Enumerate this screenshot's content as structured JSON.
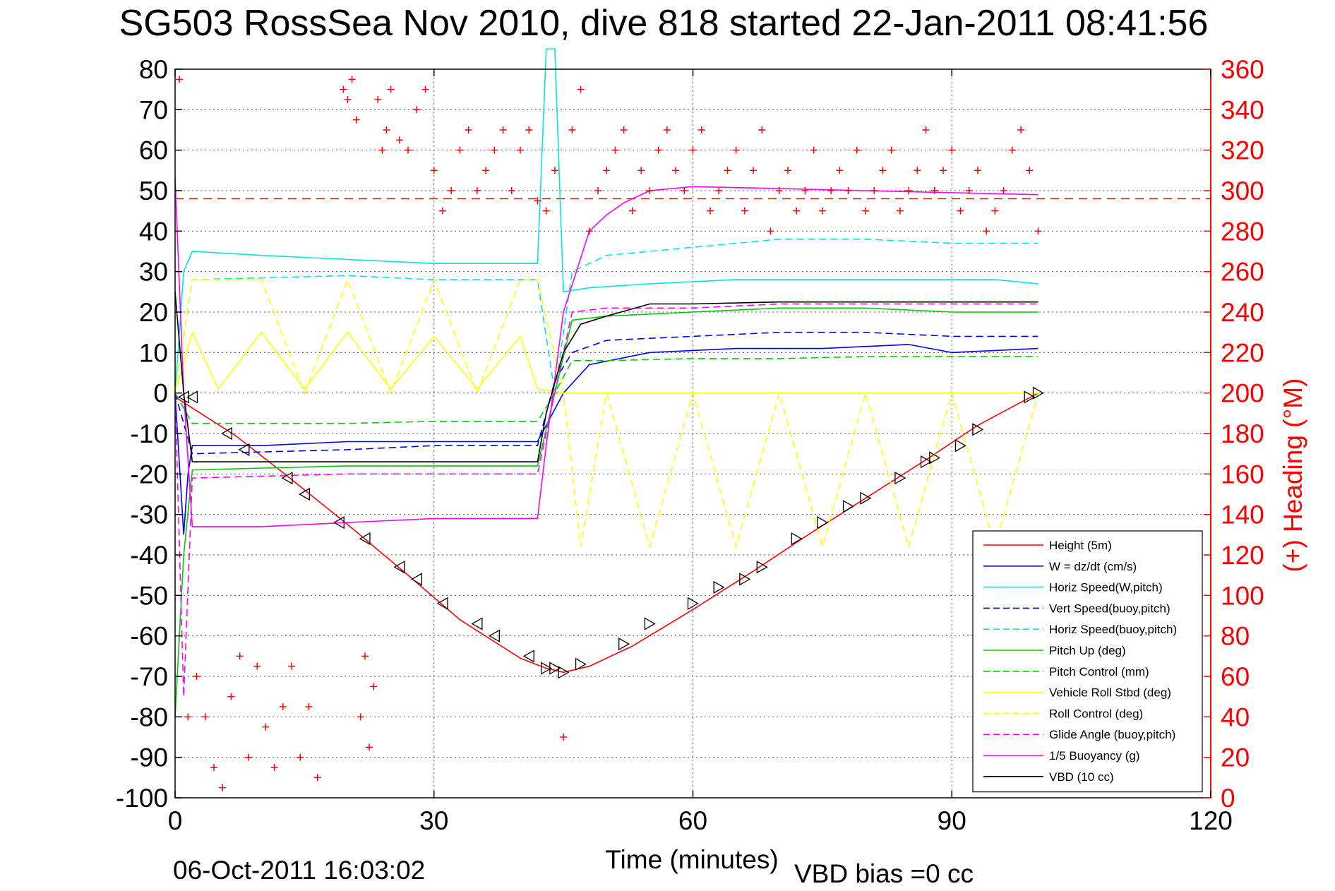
{
  "chart_data": {
    "type": "line",
    "title": "SG503 RossSea Nov 2010, dive 818 started 22-Jan-2011 08:41:56",
    "xlabel": "Time (minutes)",
    "ylabel": "",
    "y2label": "(+) Heading (°M)",
    "xlim": [
      0,
      120
    ],
    "ylim": [
      -100,
      80
    ],
    "y2lim": [
      0,
      360
    ],
    "xticks": [
      "0",
      "30",
      "60",
      "90",
      "120"
    ],
    "yticks": [
      "80",
      "70",
      "60",
      "50",
      "40",
      "30",
      "20",
      "10",
      "0",
      "-10",
      "-20",
      "-30",
      "-40",
      "-50",
      "-60",
      "-70",
      "-80",
      "-90",
      "-100"
    ],
    "y2ticks": [
      "360",
      "340",
      "320",
      "300",
      "280",
      "260",
      "240",
      "220",
      "200",
      "180",
      "160",
      "140",
      "120",
      "100",
      "80",
      "60",
      "40",
      "20",
      "0"
    ],
    "grid": true,
    "legend_position": "bottom-right",
    "reference_heading": 296,
    "series": [
      {
        "name": "Height (5m)",
        "color": "#ff0000",
        "style": "solid",
        "x": [
          0,
          7,
          13,
          20,
          27,
          33,
          40,
          43,
          45,
          48,
          53,
          60,
          67,
          73,
          80,
          87,
          93,
          100
        ],
        "y": [
          -1,
          -10.5,
          -20.5,
          -32.5,
          -45,
          -56,
          -65.5,
          -68,
          -69,
          -67.5,
          -62.5,
          -53.5,
          -44,
          -35.5,
          -26,
          -16.5,
          -8,
          0
        ]
      },
      {
        "name": "W = dz/dt (cm/s)",
        "color": "#0000ff",
        "style": "solid",
        "x": [
          0,
          1,
          1.5,
          2,
          10,
          20,
          30,
          42,
          43,
          45,
          48,
          55,
          65,
          75,
          85,
          90,
          100
        ],
        "y": [
          0,
          -35,
          -20,
          -13,
          -13,
          -12,
          -12,
          -12,
          -8,
          0,
          7,
          10,
          11,
          11,
          12,
          10,
          11
        ]
      },
      {
        "name": "Horiz Speed(W,pitch)",
        "color": "#00e5e5",
        "style": "solid",
        "x": [
          0,
          1,
          2,
          10,
          20,
          30,
          42,
          43,
          44,
          45,
          48,
          55,
          65,
          75,
          85,
          95,
          100
        ],
        "y": [
          0,
          30,
          35,
          34,
          33,
          32,
          32,
          85,
          85,
          25,
          26,
          27,
          28,
          28,
          28,
          28,
          27
        ]
      },
      {
        "name": "Vert Speed(buoy,pitch)",
        "color": "#0000ff",
        "style": "dashed",
        "x": [
          0,
          2,
          20,
          30,
          42,
          44,
          46,
          50,
          60,
          70,
          80,
          90,
          100
        ],
        "y": [
          0,
          -15,
          -14,
          -13,
          -13,
          3,
          10,
          13,
          14,
          15,
          15,
          14,
          14
        ]
      },
      {
        "name": "Horiz Speed(buoy,pitch)",
        "color": "#00e5e5",
        "style": "dashed",
        "x": [
          0,
          2,
          20,
          30,
          42,
          44,
          46,
          50,
          60,
          70,
          80,
          90,
          100
        ],
        "y": [
          0,
          28,
          29,
          28,
          28,
          0,
          30,
          34,
          36,
          38,
          38,
          37,
          37
        ]
      },
      {
        "name": "Pitch Up (deg)",
        "color": "#00cc00",
        "style": "solid",
        "x": [
          0,
          1,
          2,
          20,
          30,
          42,
          44,
          46,
          50,
          60,
          70,
          80,
          90,
          100
        ],
        "y": [
          -80,
          -40,
          -19,
          -18,
          -18,
          -18,
          0,
          18,
          19,
          20,
          21,
          21,
          20,
          20
        ]
      },
      {
        "name": "Pitch Control (mm)",
        "color": "#00cc00",
        "style": "dashed",
        "x": [
          0,
          2,
          20,
          30,
          42,
          44,
          46,
          50,
          60,
          70,
          80,
          90,
          100
        ],
        "y": [
          0,
          -7.5,
          -7.5,
          -7,
          -7,
          0,
          8,
          8,
          8.5,
          8.5,
          9,
          9,
          9
        ]
      },
      {
        "name": "Vehicle Roll Stbd (deg)",
        "color": "#ffff00",
        "style": "solid",
        "x": [
          0,
          2,
          5,
          10,
          15,
          20,
          25,
          30,
          35,
          40,
          42,
          45,
          50,
          55,
          60,
          65,
          70,
          75,
          80,
          85,
          90,
          95,
          100
        ],
        "y": [
          0,
          15,
          1,
          15,
          1,
          15,
          1,
          14,
          1,
          14,
          1,
          0,
          0,
          0,
          0,
          0,
          0,
          0,
          0,
          0,
          0,
          0,
          0
        ]
      },
      {
        "name": "Roll Control (deg)",
        "color": "#ffff00",
        "style": "dashed",
        "x": [
          0,
          2,
          5,
          10,
          15,
          20,
          25,
          30,
          35,
          40,
          42,
          45,
          47,
          50,
          55,
          60,
          65,
          70,
          75,
          80,
          85,
          90,
          95,
          100
        ],
        "y": [
          0,
          28,
          28,
          28,
          0,
          28,
          0,
          28,
          0,
          28,
          28,
          0,
          -38,
          0,
          -38,
          0,
          -38,
          0,
          -38,
          0,
          -38,
          0,
          -38,
          0
        ]
      },
      {
        "name": "Glide Angle (buoy,pitch)",
        "color": "#ff00ff",
        "style": "dashed",
        "x": [
          0,
          1,
          2,
          20,
          30,
          42,
          44,
          46,
          50,
          60,
          70,
          80,
          90,
          100
        ],
        "y": [
          0,
          -75,
          -21,
          -20,
          -20,
          -20,
          0,
          20,
          21,
          21,
          22,
          22,
          22,
          22
        ]
      },
      {
        "name": "1/5 Buoyancy (g)",
        "color": "#ff00ff",
        "style": "solid",
        "x": [
          0,
          1,
          2,
          10,
          20,
          30,
          42,
          43,
          45,
          48,
          50,
          52,
          55,
          60,
          70,
          80,
          90,
          100
        ],
        "y": [
          53,
          0,
          -33,
          -33,
          -32,
          -31,
          -31,
          -13,
          20,
          40,
          44,
          47,
          50,
          51,
          50.5,
          50,
          49.5,
          49
        ]
      },
      {
        "name": "VBD (10 cc)",
        "color": "#000000",
        "style": "solid",
        "x": [
          0,
          1,
          2,
          20,
          30,
          42,
          43,
          45,
          47,
          50,
          55,
          60,
          70,
          80,
          90,
          100
        ],
        "y": [
          25,
          0,
          -17,
          -17,
          -17,
          -17,
          -5,
          10,
          17,
          19,
          22,
          22,
          22.5,
          22.5,
          22.5,
          22.5
        ]
      }
    ],
    "heading_points": {
      "name": "Heading",
      "color": "#ff0000",
      "marker": "+",
      "x": [
        0.5,
        1.5,
        2.5,
        3.5,
        4.5,
        5.5,
        6.5,
        7.5,
        8.5,
        9.5,
        10.5,
        11.5,
        12.5,
        13.5,
        14.5,
        15.5,
        16.5,
        19.5,
        20,
        20.5,
        21,
        21.5,
        22,
        22.5,
        23,
        23.5,
        24,
        24.5,
        25,
        26,
        27,
        28,
        29,
        30,
        31,
        32,
        33,
        34,
        35,
        36,
        37,
        38,
        39,
        40,
        41,
        42,
        43,
        44,
        45,
        46,
        47,
        48,
        49,
        50,
        51,
        52,
        53,
        54,
        55,
        56,
        57,
        58,
        59,
        60,
        61,
        62,
        63,
        64,
        65,
        66,
        67,
        68,
        69,
        70,
        71,
        72,
        73,
        74,
        75,
        76,
        77,
        78,
        79,
        80,
        81,
        82,
        83,
        84,
        85,
        86,
        87,
        88,
        89,
        90,
        91,
        92,
        93,
        94,
        95,
        96,
        97,
        98,
        99,
        100
      ],
      "y": [
        355,
        40,
        60,
        40,
        15,
        5,
        50,
        70,
        20,
        65,
        35,
        15,
        45,
        65,
        20,
        45,
        10,
        350,
        345,
        355,
        335,
        40,
        70,
        25,
        55,
        345,
        320,
        330,
        350,
        325,
        320,
        340,
        350,
        310,
        290,
        300,
        320,
        330,
        300,
        310,
        320,
        330,
        300,
        320,
        330,
        295,
        290,
        310,
        30,
        330,
        350,
        280,
        300,
        310,
        320,
        330,
        290,
        310,
        300,
        320,
        330,
        310,
        300,
        320,
        330,
        290,
        300,
        310,
        320,
        290,
        310,
        330,
        280,
        300,
        310,
        290,
        300,
        320,
        290,
        300,
        310,
        300,
        320,
        290,
        300,
        310,
        320,
        290,
        300,
        310,
        330,
        300,
        310,
        320,
        290,
        300,
        310,
        280,
        290,
        300,
        320,
        330,
        310,
        280
      ]
    },
    "dive_markers": {
      "down": {
        "x": [
          1,
          2,
          6,
          8,
          13,
          15,
          19,
          22,
          26,
          28,
          31,
          35,
          37,
          41
        ],
        "y": [
          -1,
          -1,
          -10,
          -14,
          -21,
          -25,
          -32,
          -36,
          -43,
          -46,
          -52,
          -57,
          -60,
          -65
        ]
      },
      "up": {
        "x": [
          43,
          44,
          45,
          47,
          52,
          55,
          60,
          63,
          66,
          68,
          72,
          75,
          78,
          80,
          84,
          87,
          88,
          91,
          93,
          99,
          100
        ],
        "y": [
          -68,
          -68,
          -69,
          -67,
          -62,
          -57,
          -52,
          -48,
          -46,
          -43,
          -36,
          -32,
          -28,
          -26,
          -21,
          -17,
          -16,
          -13,
          -9,
          -1,
          0
        ]
      }
    }
  },
  "footer": {
    "timestamp": "06-Oct-2011 16:03:02",
    "vbd_bias": "VBD bias =0 cc"
  }
}
